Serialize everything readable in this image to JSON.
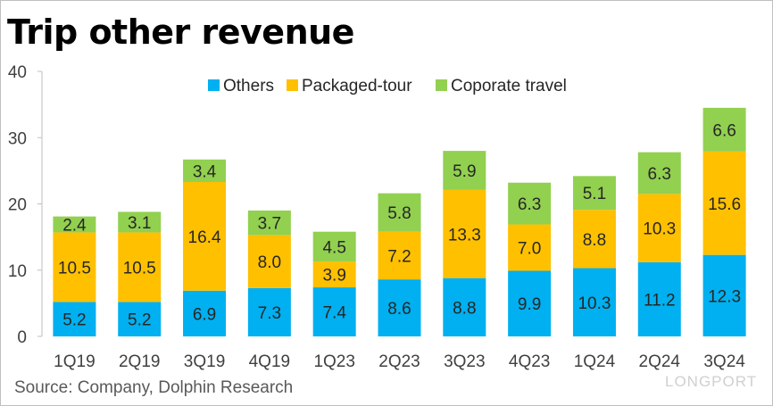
{
  "title": "Trip other revenue",
  "source": "Source: Company, Dolphin Research",
  "watermark": "LONGPORT",
  "chart_data": {
    "type": "bar",
    "stacked": true,
    "categories": [
      "1Q19",
      "2Q19",
      "3Q19",
      "4Q19",
      "1Q23",
      "2Q23",
      "3Q23",
      "4Q23",
      "1Q24",
      "2Q24",
      "3Q24"
    ],
    "series": [
      {
        "name": "Others",
        "color": "#00b0f0",
        "values": [
          5.2,
          5.2,
          6.9,
          7.3,
          7.4,
          8.6,
          8.8,
          9.9,
          10.3,
          11.2,
          12.3
        ]
      },
      {
        "name": "Packaged-tour",
        "color": "#ffc000",
        "values": [
          10.5,
          10.5,
          16.4,
          8.0,
          3.9,
          7.2,
          13.3,
          7.0,
          8.8,
          10.3,
          15.6
        ]
      },
      {
        "name": "Coporate travel",
        "color": "#92d050",
        "values": [
          2.4,
          3.1,
          3.4,
          3.7,
          4.5,
          5.8,
          5.9,
          6.3,
          5.1,
          6.3,
          6.6
        ]
      }
    ],
    "ylim": [
      0,
      40
    ],
    "yticks": [
      "0",
      "10",
      "20",
      "30",
      "40"
    ],
    "legend_position": "top",
    "grid": false
  }
}
